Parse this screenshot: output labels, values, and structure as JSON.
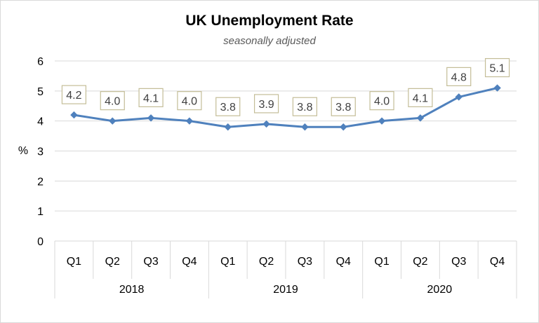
{
  "chart_data": {
    "type": "line",
    "title": "UK Unemployment Rate",
    "subtitle": "seasonally adjusted",
    "ylabel": "%",
    "xlabel": "",
    "ylim": [
      0,
      6
    ],
    "yticks": [
      "0",
      "1",
      "2",
      "3",
      "4",
      "5",
      "6"
    ],
    "categories": [
      "Q1",
      "Q2",
      "Q3",
      "Q4",
      "Q1",
      "Q2",
      "Q3",
      "Q4",
      "Q1",
      "Q2",
      "Q3",
      "Q4"
    ],
    "groups": [
      {
        "label": "2018",
        "count": 4
      },
      {
        "label": "2019",
        "count": 4
      },
      {
        "label": "2020",
        "count": 4
      }
    ],
    "series": [
      {
        "values": [
          4.2,
          4.0,
          4.1,
          4.0,
          3.8,
          3.9,
          3.8,
          3.8,
          4.0,
          4.1,
          4.8,
          5.1
        ],
        "labels": [
          "4.2",
          "4.0",
          "4.1",
          "4.0",
          "3.8",
          "3.9",
          "3.8",
          "3.8",
          "4.0",
          "4.1",
          "4.8",
          "5.1"
        ],
        "color": "#4f81bd"
      }
    ],
    "grid": true,
    "legend": "none",
    "label_box_color": "#c4bd97"
  }
}
